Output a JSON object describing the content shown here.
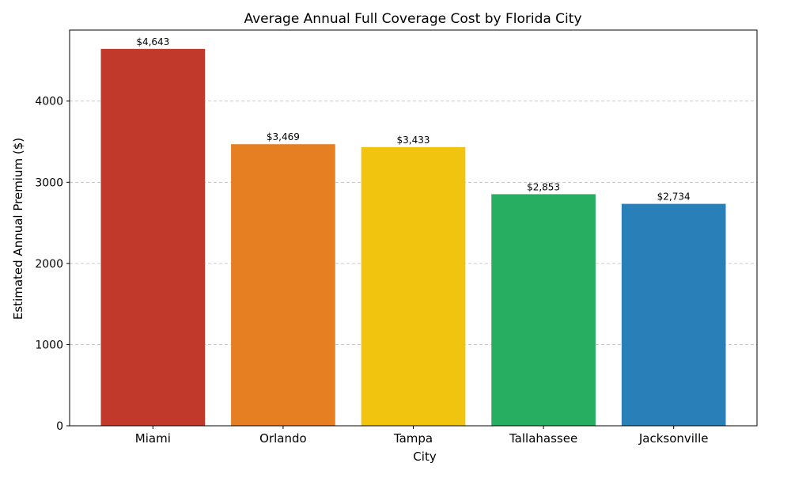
{
  "chart_data": {
    "type": "bar",
    "title": "Average Annual Full Coverage Cost by Florida City",
    "xlabel": "City",
    "ylabel": "Estimated Annual Premium ($)",
    "categories": [
      "Miami",
      "Orlando",
      "Tampa",
      "Tallahassee",
      "Jacksonville"
    ],
    "values": [
      4643,
      3469,
      3433,
      2853,
      2734
    ],
    "data_labels": [
      "$4,643",
      "$3,469",
      "$3,433",
      "$2,853",
      "$2,734"
    ],
    "colors": [
      "#c0392b",
      "#e67e22",
      "#f1c40f",
      "#27ae60",
      "#2980b9"
    ],
    "ylim": [
      0,
      4875
    ],
    "yticks": [
      0,
      1000,
      2000,
      3000,
      4000
    ],
    "ytick_labels": [
      "0",
      "1000",
      "2000",
      "3000",
      "4000"
    ],
    "grid": "y-dashed",
    "legend": "none"
  }
}
